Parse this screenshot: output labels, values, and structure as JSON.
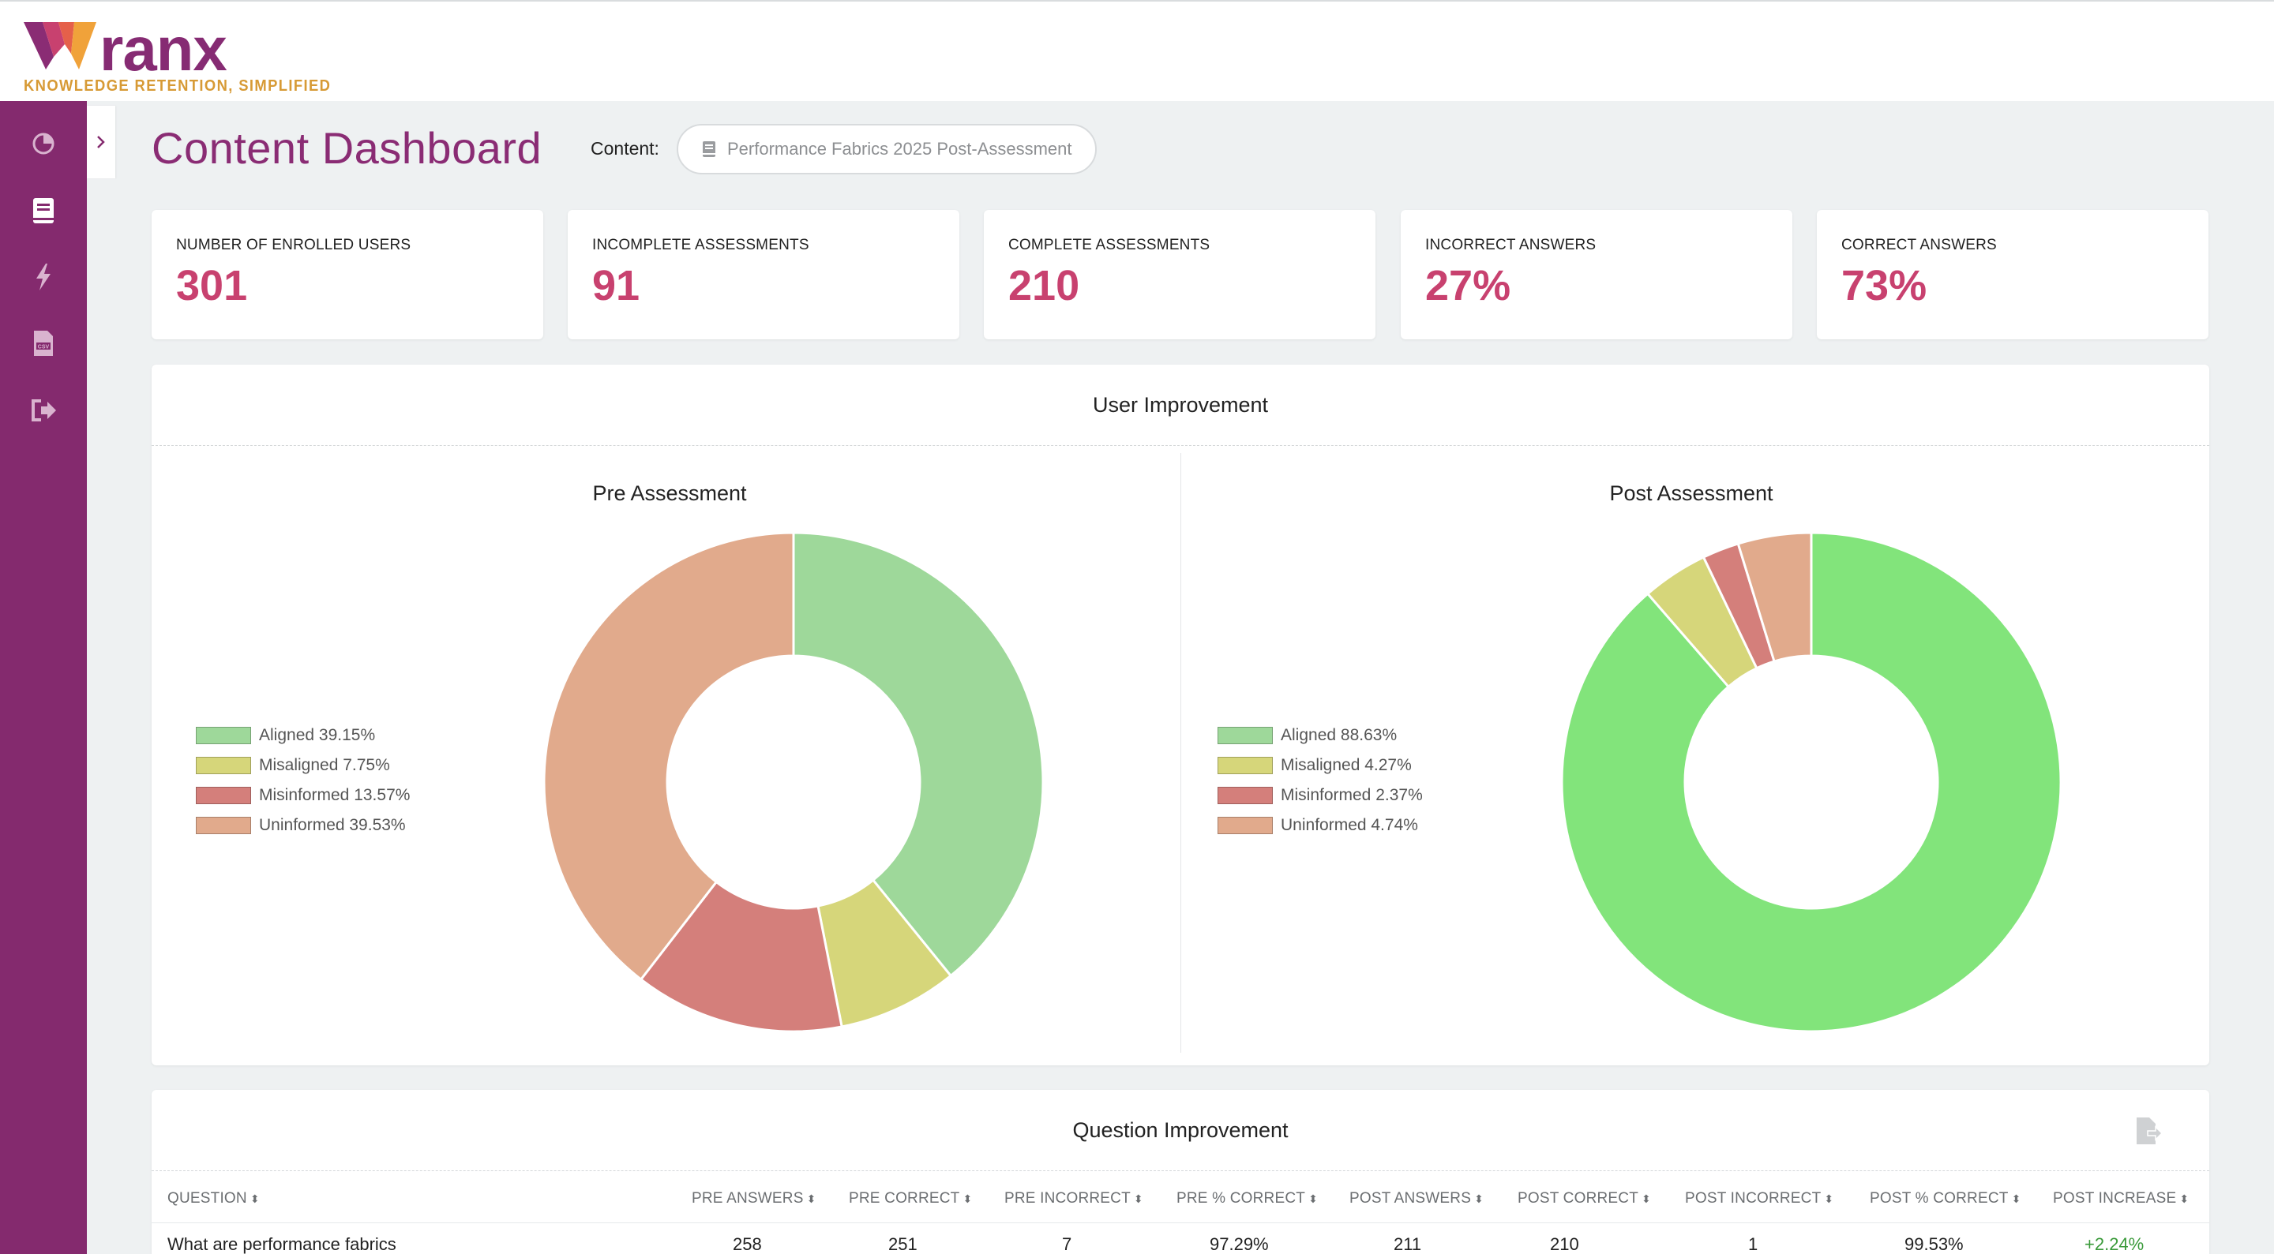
{
  "brand": {
    "name": "ranx",
    "tagline": "KNOWLEDGE RETENTION, SIMPLIFIED"
  },
  "sidebar": {
    "items": [
      {
        "icon": "pie-chart-icon"
      },
      {
        "icon": "book-icon"
      },
      {
        "icon": "lightning-icon"
      },
      {
        "icon": "csv-file-icon"
      },
      {
        "icon": "sign-out-icon"
      }
    ]
  },
  "header": {
    "title": "Content Dashboard",
    "content_label": "Content:",
    "content_value": "Performance Fabrics 2025 Post-Assessment"
  },
  "stats": [
    {
      "label": "NUMBER OF ENROLLED USERS",
      "value": "301"
    },
    {
      "label": "INCOMPLETE ASSESSMENTS",
      "value": "91"
    },
    {
      "label": "COMPLETE ASSESSMENTS",
      "value": "210"
    },
    {
      "label": "INCORRECT ANSWERS",
      "value": "27%"
    },
    {
      "label": "CORRECT ANSWERS",
      "value": "73%"
    }
  ],
  "user_improvement": {
    "title": "User Improvement"
  },
  "chart_data": [
    {
      "type": "pie",
      "title": "Pre Assessment",
      "categories": [
        "Aligned",
        "Misaligned",
        "Misinformed",
        "Uninformed"
      ],
      "values": [
        39.15,
        7.75,
        13.57,
        39.53
      ],
      "legend_labels": [
        "Aligned 39.15%",
        "Misaligned 7.75%",
        "Misinformed 13.57%",
        "Uninformed 39.53%"
      ],
      "colors": [
        "#9ed89a",
        "#d6d67a",
        "#d47f7b",
        "#e1aa8c"
      ],
      "donut": true,
      "legend_placement": "left"
    },
    {
      "type": "pie",
      "title": "Post Assessment",
      "categories": [
        "Aligned",
        "Misaligned",
        "Misinformed",
        "Uninformed"
      ],
      "values": [
        88.63,
        4.27,
        2.37,
        4.74
      ],
      "legend_labels": [
        "Aligned 88.63%",
        "Misaligned 4.27%",
        "Misinformed 2.37%",
        "Uninformed 4.74%"
      ],
      "colors": [
        "#82e47b",
        "#d6d67a",
        "#d47f7b",
        "#e1aa8c"
      ],
      "donut": true,
      "legend_placement": "left"
    }
  ],
  "question_improvement": {
    "title": "Question Improvement",
    "columns": [
      "QUESTION",
      "PRE ANSWERS",
      "PRE CORRECT",
      "PRE INCORRECT",
      "PRE % CORRECT",
      "POST ANSWERS",
      "POST CORRECT",
      "POST INCORRECT",
      "POST % CORRECT",
      "POST INCREASE"
    ],
    "rows": [
      {
        "question": "What are performance fabrics",
        "pre_answers": "258",
        "pre_correct": "251",
        "pre_incorrect": "7",
        "pre_pct": "97.29%",
        "post_answers": "211",
        "post_correct": "210",
        "post_incorrect": "1",
        "post_pct": "99.53%",
        "post_increase": "+2.24%"
      }
    ]
  }
}
